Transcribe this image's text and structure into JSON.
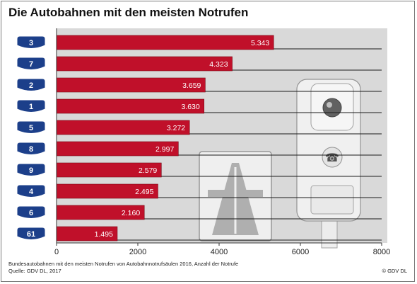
{
  "header": {
    "title": "Die Autobahnen mit den meisten Notrufen"
  },
  "footer": {
    "caption_line1": "Bundesautobahnen mit den meisten Notrufen von Autobahnnotrufsäulen 2016, Anzahl der Notrufe",
    "caption_line2": "Quelle: GDV DL, 2017",
    "copyright": "© GDV DL"
  },
  "colors": {
    "bar": "#c0102a",
    "badge": "#1c3f8a",
    "plot_background": "#d9d9d9",
    "gridline": "#1a1a1a"
  },
  "chart_data": {
    "type": "bar",
    "orientation": "horizontal",
    "title": "Die Autobahnen mit den meisten Notrufen",
    "categories": [
      "3",
      "7",
      "2",
      "1",
      "5",
      "8",
      "9",
      "4",
      "6",
      "61"
    ],
    "values": [
      5343,
      4323,
      3659,
      3630,
      3272,
      2997,
      2579,
      2495,
      2160,
      1495
    ],
    "value_labels": [
      "5.343",
      "4.323",
      "3.659",
      "3.630",
      "3.272",
      "2.997",
      "2.579",
      "2.495",
      "2.160",
      "1.495"
    ],
    "xlim": [
      0,
      8000
    ],
    "xticks": [
      0,
      2000,
      4000,
      6000,
      8000
    ],
    "xtick_labels": [
      "0",
      "2000",
      "4000",
      "6000",
      "8000"
    ],
    "xlabel": "",
    "ylabel": "",
    "grid": "horizontal lines behind each bar",
    "category_style": "blue Autobahn badges"
  }
}
